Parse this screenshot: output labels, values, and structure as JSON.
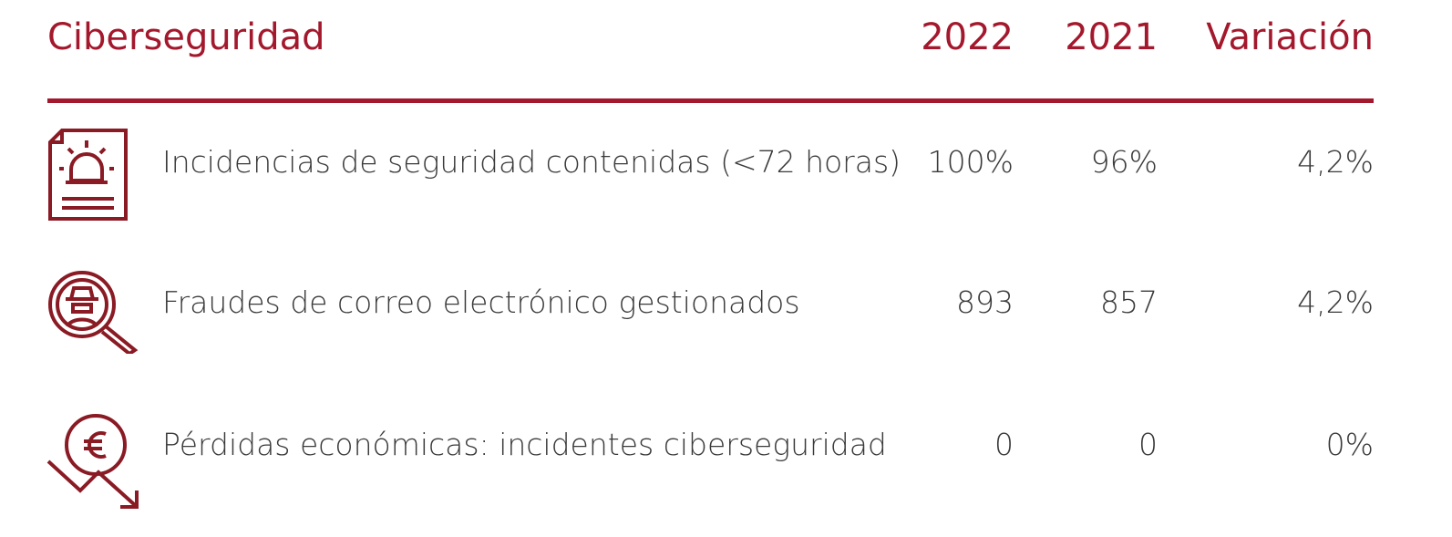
{
  "header": {
    "title": "Ciberseguridad",
    "columns": [
      "2022",
      "2021",
      "Variación"
    ]
  },
  "table": {
    "rows": [
      [
        "Incidencias de seguridad contenidas (<72 horas)",
        "100%",
        "96%",
        "4,2%"
      ],
      [
        "Fraudes de correo electrónico gestionados",
        "893",
        "857",
        "4,2%"
      ],
      [
        "Pérdidas económicas: incidentes ciberseguridad",
        "0",
        "0",
        "0%"
      ]
    ]
  }
}
